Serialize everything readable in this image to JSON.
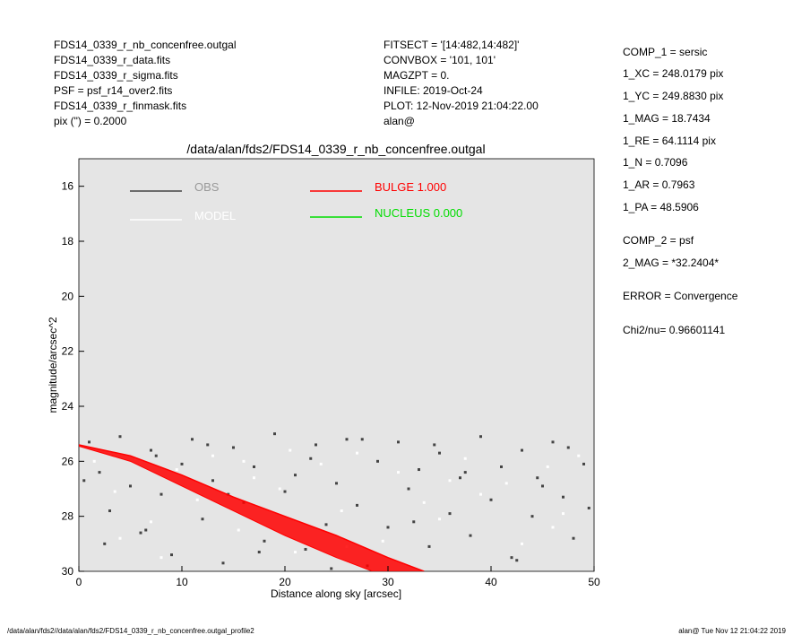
{
  "header": {
    "left": [
      "FDS14_0339_r_nb_concenfree.outgal",
      "FDS14_0339_r_data.fits",
      "FDS14_0339_r_sigma.fits",
      "PSF    = psf_r14_over2.fits",
      "FDS14_0339_r_finmask.fits",
      "pix (\") =  0.2000"
    ],
    "middle": [
      "FITSECT = '[14:482,14:482]'",
      "CONVBOX = '101, 101'",
      "MAGZPT  =              0.",
      "INFILE: 2019-Oct-24",
      "PLOT: 12-Nov-2019 21:04:22.00",
      "alan@"
    ],
    "right": [
      "COMP_1  = sersic",
      "1_XC    = 248.0179 pix",
      "1_YC    = 249.8830 pix",
      "1_MAG   = 18.7434",
      "1_RE    = 64.1114 pix",
      "1_N     = 0.7096",
      "1_AR    = 0.7963",
      "1_PA    = 48.5906",
      "COMP_2  = psf",
      "2_MAG   = *32.2404*",
      "ERROR   = Convergence",
      "Chi2/nu=      0.96601141"
    ]
  },
  "footer": {
    "left": "/data/alan/fds2//data/alan/fds2/FDS14_0339_r_nb_concenfree.outgal_profile2",
    "right": "alan@  Tue Nov 12 21:04:22 2019"
  },
  "chart_data": {
    "type": "scatter",
    "title": "/data/alan/fds2/FDS14_0339_r_nb_concenfree.outgal",
    "x_label": "Distance along sky [arcsec]",
    "y_label": "magnitude/arcsec^2",
    "xlim": [
      0,
      50
    ],
    "xticks": [
      0,
      10,
      20,
      30,
      40,
      50
    ],
    "ylim": [
      30,
      15
    ],
    "yticks": [
      16,
      18,
      20,
      22,
      24,
      26,
      28,
      30
    ],
    "background": "#e5e5e5",
    "series": [
      {
        "name": "OBS",
        "color": "#444444",
        "kind": "points",
        "x": [
          1,
          2,
          3,
          4,
          5,
          6,
          7,
          8,
          9,
          10,
          11,
          12,
          13,
          14,
          15,
          16,
          17,
          18,
          19,
          20,
          21,
          22,
          23,
          24,
          25,
          26,
          27,
          28,
          29,
          30,
          31,
          32,
          33,
          34,
          35,
          36,
          37,
          38,
          39,
          40,
          41,
          42,
          43,
          44,
          45,
          46,
          47,
          48,
          49,
          2.5,
          7.5,
          12.5,
          17.5,
          22.5,
          27.5,
          32.5,
          37.5,
          42.5,
          47.5,
          49.5,
          0.5,
          6.5,
          14.5,
          24.5,
          34.5,
          44.5
        ],
        "values": [
          25.3,
          26.4,
          27.8,
          25.1,
          26.9,
          28.6,
          25.6,
          27.2,
          29.4,
          26.1,
          25.2,
          28.1,
          26.7,
          29.7,
          25.5,
          27.5,
          26.2,
          28.9,
          25.0,
          27.1,
          26.5,
          29.2,
          25.4,
          28.3,
          26.8,
          25.2,
          27.6,
          29.8,
          26.0,
          28.4,
          25.3,
          27.0,
          26.3,
          29.1,
          25.7,
          27.9,
          26.6,
          28.7,
          25.1,
          27.4,
          26.2,
          29.5,
          25.6,
          28.0,
          26.9,
          25.3,
          27.3,
          28.8,
          26.1,
          29.0,
          25.8,
          25.4,
          29.3,
          25.9,
          25.2,
          28.2,
          26.4,
          29.6,
          25.5,
          27.7,
          26.7,
          28.5,
          27.2,
          29.9,
          25.4,
          26.6
        ]
      },
      {
        "name": "MODEL",
        "color": "#ffffff",
        "kind": "points",
        "x": [
          1.5,
          3.5,
          5.5,
          7,
          9.5,
          11.5,
          13,
          15.5,
          17,
          19.5,
          21,
          23.5,
          25.5,
          27,
          29.5,
          31,
          33.5,
          35,
          37.5,
          39,
          41.5,
          43,
          45.5,
          47,
          48.5,
          4,
          8,
          16,
          26,
          36,
          46,
          20.5
        ],
        "values": [
          26.0,
          27.1,
          25.9,
          28.2,
          26.3,
          27.4,
          25.8,
          28.5,
          26.6,
          27.0,
          29.3,
          26.1,
          27.8,
          25.7,
          28.9,
          26.4,
          27.5,
          28.1,
          25.9,
          27.2,
          26.8,
          29.0,
          26.2,
          27.9,
          25.8,
          28.8,
          29.5,
          26.0,
          29.1,
          26.7,
          28.4,
          25.6
        ]
      },
      {
        "name": "BULGE  1.000",
        "color": "#ff0000",
        "kind": "band",
        "x": [
          0,
          5,
          10,
          15,
          20,
          25,
          30,
          33.5
        ],
        "values": [
          25.4,
          25.8,
          26.5,
          27.3,
          28.0,
          28.7,
          29.5,
          30
        ],
        "lower": {
          "x": [
            0,
            5,
            10,
            15,
            20,
            25,
            28.5
          ],
          "values": [
            25.45,
            26.0,
            26.9,
            27.8,
            28.7,
            29.5,
            30
          ]
        }
      },
      {
        "name": "NUCLEUS  0.000",
        "color": "#00dd00",
        "kind": "points",
        "x": [],
        "values": []
      }
    ]
  }
}
